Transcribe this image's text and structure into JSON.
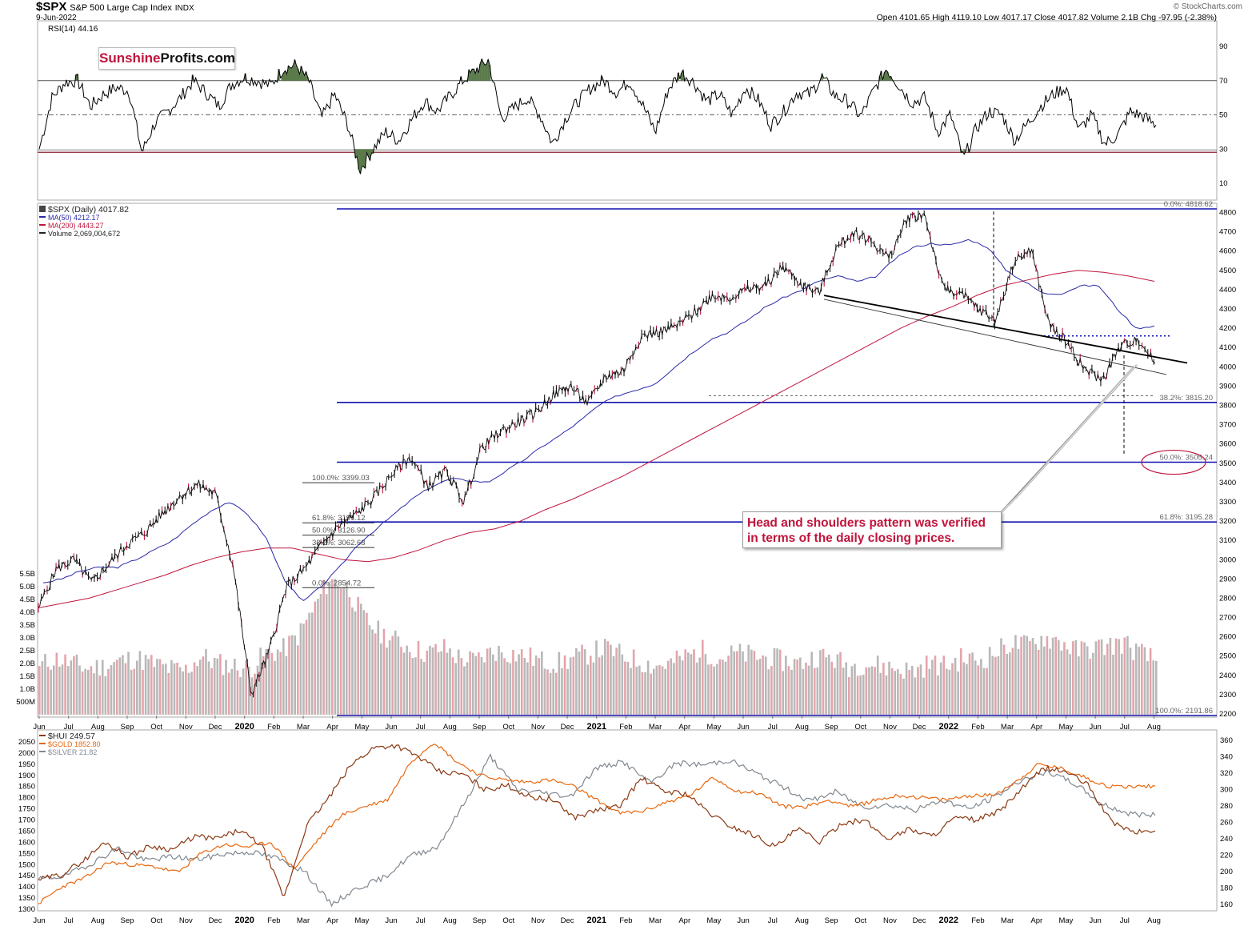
{
  "header": {
    "symbol": "$SPX",
    "name": "S&P 500 Large Cap Index",
    "exchange": "INDX",
    "date": "9-Jun-2022",
    "ohlc": "Open 4101.65  High 4119.10  Low 4017.17  Close 4017.82  Volume 2.1B  Chg -97.95 (-2.38%)",
    "credit": "© StockCharts.com"
  },
  "logo": {
    "part1": "Sunshine",
    "part2": "Profits.com"
  },
  "note": {
    "line1": "Head and shoulders pattern was verified",
    "line2": "in terms of the daily closing prices."
  },
  "colors": {
    "fib_line": "#1010b0",
    "ma50": "#2a2aa8",
    "ma200": "#c0143c",
    "hui": "#8b3a14",
    "gold": "#e8680f",
    "silver": "#808890",
    "vol_up": "#b8b8b8",
    "vol_down": "#e4a4ab",
    "rsi": "#000000",
    "rsi_fill": "#5a7a4a"
  },
  "chart_data": [
    {
      "type": "line",
      "panel": "rsi",
      "label": "RSI(14) 44.16",
      "ylim": [
        0,
        100
      ],
      "yticks": [
        10,
        30,
        50,
        70,
        90
      ],
      "reference_lines": [
        30,
        50,
        70
      ],
      "values": [
        30,
        60,
        69,
        70,
        55,
        62,
        66,
        64,
        28,
        45,
        52,
        60,
        70,
        63,
        55,
        68,
        72,
        70,
        67,
        77,
        79,
        70,
        48,
        62,
        45,
        18,
        30,
        40,
        35,
        47,
        58,
        52,
        61,
        70,
        76,
        82,
        48,
        54,
        60,
        50,
        33,
        48,
        58,
        66,
        70,
        63,
        70,
        56,
        40,
        65,
        75,
        69,
        58,
        62,
        50,
        66,
        59,
        44,
        52,
        63,
        62,
        72,
        61,
        58,
        49,
        64,
        77,
        67,
        57,
        60,
        40,
        50,
        24,
        42,
        52,
        50,
        35,
        45,
        55,
        62,
        66,
        41,
        50,
        33,
        38,
        52,
        49,
        44
      ]
    },
    {
      "type": "line",
      "panel": "price",
      "legend": [
        "$SPX (Daily) 4017.82",
        "MA(50) 4212.17",
        "MA(200) 4443.27",
        "Volume 2,069,004,672"
      ],
      "x_tick_labels": [
        "Jun",
        "Jul",
        "Aug",
        "Sep",
        "Oct",
        "Nov",
        "Dec",
        "2020",
        "Feb",
        "Mar",
        "Apr",
        "May",
        "Jun",
        "Jul",
        "Aug",
        "Sep",
        "Oct",
        "Nov",
        "Dec",
        "2021",
        "Feb",
        "Mar",
        "Apr",
        "May",
        "Jun",
        "Jul",
        "Aug",
        "Sep",
        "Oct",
        "Nov",
        "Dec",
        "2022",
        "Feb",
        "Mar",
        "Apr",
        "May",
        "Jun",
        "Jul",
        "Aug"
      ],
      "y_tick_labels": [
        2200,
        2300,
        2400,
        2500,
        2600,
        2700,
        2800,
        2900,
        3000,
        3100,
        3200,
        3300,
        3400,
        3500,
        3600,
        3700,
        3800,
        3900,
        4000,
        4100,
        4200,
        4300,
        4400,
        4500,
        4600,
        4700,
        4800
      ],
      "volume_axis_labels": [
        "500M",
        "1.0B",
        "1.5B",
        "2.0B",
        "2.5B",
        "3.0B",
        "3.5B",
        "4.0B",
        "4.5B",
        "5.0B",
        "5.5B"
      ],
      "ylim": [
        2191.86,
        4818.62
      ],
      "close": [
        2750,
        2950,
        3000,
        2880,
        2980,
        3080,
        3140,
        3240,
        3330,
        3390,
        3340,
        2960,
        2300,
        2520,
        2860,
        2950,
        3080,
        3180,
        3240,
        3330,
        3450,
        3530,
        3380,
        3460,
        3300,
        3580,
        3660,
        3710,
        3760,
        3850,
        3900,
        3810,
        3950,
        3980,
        4160,
        4180,
        4210,
        4280,
        4370,
        4360,
        4400,
        4420,
        4520,
        4430,
        4380,
        4610,
        4700,
        4650,
        4560,
        4770,
        4790,
        4410,
        4380,
        4300,
        4240,
        4540,
        4610,
        4220,
        4130,
        3990,
        3930,
        4100,
        4150,
        4017.82
      ],
      "ma50": [
        2880,
        2900,
        2940,
        2960,
        2960,
        3000,
        3050,
        3100,
        3180,
        3250,
        3300,
        3240,
        3120,
        2900,
        2780,
        2860,
        2960,
        3080,
        3160,
        3240,
        3320,
        3380,
        3420,
        3410,
        3400,
        3460,
        3520,
        3590,
        3650,
        3720,
        3800,
        3850,
        3880,
        3910,
        3990,
        4070,
        4140,
        4180,
        4240,
        4310,
        4360,
        4400,
        4450,
        4470,
        4440,
        4470,
        4560,
        4620,
        4640,
        4630,
        4660,
        4620,
        4500,
        4440,
        4380,
        4380,
        4420,
        4420,
        4300,
        4200,
        4212.17
      ],
      "ma200": [
        2750,
        2775,
        2800,
        2840,
        2880,
        2920,
        2970,
        3010,
        3040,
        3060,
        3060,
        3030,
        3000,
        2990,
        3010,
        3050,
        3100,
        3140,
        3160,
        3200,
        3260,
        3310,
        3370,
        3430,
        3500,
        3570,
        3640,
        3710,
        3780,
        3850,
        3920,
        3990,
        4060,
        4130,
        4200,
        4260,
        4310,
        4370,
        4420,
        4450,
        4480,
        4500,
        4490,
        4470,
        4443.27
      ],
      "fibonacci_levels": [
        {
          "label": "0.0%: 4818.62",
          "value": 4818.62
        },
        {
          "label": "38.2%: 3815.20",
          "value": 3815.2
        },
        {
          "label": "50.0%: 3505.24",
          "value": 3505.24
        },
        {
          "label": "61.8%: 3195.28",
          "value": 3195.28
        },
        {
          "label": "100.0%: 2191.86",
          "value": 2191.86
        }
      ],
      "fibonacci_2020": [
        {
          "label": "100.0%: 3399.03",
          "value": 3399.03
        },
        {
          "label": "61.8%: 3191.12",
          "value": 3191.12
        },
        {
          "label": "50.0%: 3126.90",
          "value": 3126.9
        },
        {
          "label": "38.2%: 3062.68",
          "value": 3062.68
        },
        {
          "label": "0.0%: 2854.72",
          "value": 2854.72
        }
      ],
      "support_dotted": 4160,
      "volume_billion": [
        1.9,
        2.2,
        2.0,
        1.8,
        1.9,
        2.1,
        2.2,
        2.0,
        1.8,
        1.7,
        2.3,
        2.0,
        1.9,
        1.8,
        2.4,
        2.5,
        3.1,
        4.2,
        5.4,
        5.0,
        3.8,
        3.2,
        2.9,
        2.6,
        2.4,
        2.6,
        2.2,
        2.1,
        2.5,
        2.4,
        2.3,
        2.1,
        2.0,
        2.2,
        2.4,
        2.6,
        2.3,
        2.1,
        1.9,
        2.0,
        2.3,
        2.5,
        2.2,
        2.4,
        2.3,
        2.2,
        2.1,
        2.0,
        2.3,
        2.2,
        1.9,
        2.0,
        1.9,
        1.8,
        1.7,
        2.0,
        1.9,
        2.2,
        2.1,
        2.4,
        2.8,
        2.7,
        3.0,
        2.9,
        2.5,
        2.6,
        2.7,
        2.8,
        2.4,
        2.1
      ]
    },
    {
      "type": "line",
      "panel": "metals",
      "series": [
        {
          "name": "$HUI 249.57",
          "values": [
            190,
            196,
            213,
            236,
            218,
            231,
            227,
            243,
            240,
            250,
            232,
            168,
            256,
            290,
            330,
            351,
            354,
            340,
            321,
            319,
            300,
            305,
            291,
            288,
            266,
            275,
            279,
            314,
            298,
            295,
            272,
            255,
            245,
            230,
            252,
            236,
            260,
            262,
            240,
            252,
            243,
            265,
            263,
            273,
            300,
            326,
            322,
            305,
            262,
            248,
            249.57
          ]
        },
        {
          "name": "$GOLD 1852.80",
          "values": [
            1325,
            1400,
            1440,
            1510,
            1500,
            1490,
            1465,
            1550,
            1590,
            1580,
            1600,
            1480,
            1610,
            1720,
            1760,
            1790,
            1960,
            2050,
            1960,
            1900,
            1880,
            1870,
            1880,
            1850,
            1790,
            1730,
            1740,
            1780,
            1810,
            1890,
            1830,
            1820,
            1760,
            1760,
            1790,
            1760,
            1790,
            1810,
            1800,
            1790,
            1810,
            1810,
            1870,
            1950,
            1930,
            1890,
            1850,
            1850,
            1852.8
          ]
        },
        {
          "name": "$SILVER 21.82",
          "values": [
            15.1,
            15.5,
            16.8,
            18.4,
            17.1,
            17.5,
            17.2,
            17.8,
            18.0,
            17.3,
            16.0,
            12.5,
            14.2,
            15.3,
            17.6,
            18.5,
            23.0,
            28.0,
            24.5,
            24.2,
            23.8,
            26.8,
            27.4,
            25.2,
            27.3,
            27.1,
            27.6,
            26.2,
            24.8,
            23.3,
            24.3,
            22.7,
            22.9,
            22.4,
            23.4,
            22.5,
            23.8,
            25.6,
            26.3,
            25.1,
            23.0,
            22.0,
            21.82
          ]
        }
      ],
      "left_axis": [
        1300,
        1350,
        1400,
        1450,
        1500,
        1550,
        1600,
        1650,
        1700,
        1750,
        1800,
        1850,
        1900,
        1950,
        2000,
        2050
      ],
      "right_axis": [
        160,
        180,
        200,
        220,
        240,
        260,
        280,
        300,
        320,
        340,
        360
      ],
      "x_tick_labels": [
        "Jun",
        "Jul",
        "Aug",
        "Sep",
        "Oct",
        "Nov",
        "Dec",
        "2020",
        "Feb",
        "Mar",
        "Apr",
        "May",
        "Jun",
        "Jul",
        "Aug",
        "Sep",
        "Oct",
        "Nov",
        "Dec",
        "2021",
        "Feb",
        "Mar",
        "Apr",
        "May",
        "Jun",
        "Jul",
        "Aug",
        "Sep",
        "Oct",
        "Nov",
        "Dec",
        "2022",
        "Feb",
        "Mar",
        "Apr",
        "May",
        "Jun",
        "Jul",
        "Aug"
      ]
    }
  ]
}
